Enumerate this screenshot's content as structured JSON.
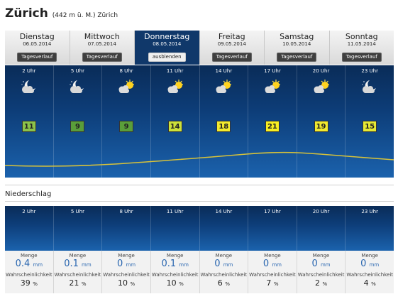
{
  "location": {
    "name": "Zürich",
    "detail": "(442 m ü. M.) Zürich"
  },
  "days": [
    {
      "name": "Dienstag",
      "date": "06.05.2014",
      "button": "Tagesverlauf",
      "active": false
    },
    {
      "name": "Mittwoch",
      "date": "07.05.2014",
      "button": "Tagesverlauf",
      "active": false
    },
    {
      "name": "Donnerstag",
      "date": "08.05.2014",
      "button": "ausblenden",
      "active": true
    },
    {
      "name": "Freitag",
      "date": "09.05.2014",
      "button": "Tagesverlauf",
      "active": false
    },
    {
      "name": "Samstag",
      "date": "10.05.2014",
      "button": "Tagesverlauf",
      "active": false
    },
    {
      "name": "Sonntag",
      "date": "11.05.2014",
      "button": "Tagesverlauf",
      "active": false
    }
  ],
  "hours": [
    {
      "time": "2 Uhr",
      "icon": "moon-cloud-icon",
      "temp": "11",
      "temp_color": "#8bc34a"
    },
    {
      "time": "5 Uhr",
      "icon": "moon-cloud-icon",
      "temp": "9",
      "temp_color": "#5a9e3a"
    },
    {
      "time": "8 Uhr",
      "icon": "sun-cloud-icon",
      "temp": "9",
      "temp_color": "#5a9e3a"
    },
    {
      "time": "11 Uhr",
      "icon": "sun-cloud-icon",
      "temp": "14",
      "temp_color": "#cde23a"
    },
    {
      "time": "14 Uhr",
      "icon": "sun-cloud-icon",
      "temp": "18",
      "temp_color": "#f2ea2e"
    },
    {
      "time": "17 Uhr",
      "icon": "sun-cloud-icon",
      "temp": "21",
      "temp_color": "#f7ee22"
    },
    {
      "time": "20 Uhr",
      "icon": "sun-cloud-icon",
      "temp": "19",
      "temp_color": "#f2ea2e"
    },
    {
      "time": "23 Uhr",
      "icon": "moon-cloud-icon",
      "temp": "15",
      "temp_color": "#e6ea34"
    }
  ],
  "precipitation": {
    "heading": "Niederschlag",
    "amount_label": "Menge",
    "probability_label": "Wahrscheinlichkeit",
    "amount_unit": "mm",
    "probability_unit": "%",
    "items": [
      {
        "time": "2 Uhr",
        "amount": "0.4",
        "probability": "39"
      },
      {
        "time": "5 Uhr",
        "amount": "0.1",
        "probability": "21"
      },
      {
        "time": "8 Uhr",
        "amount": "0",
        "probability": "10"
      },
      {
        "time": "11 Uhr",
        "amount": "0.1",
        "probability": "10"
      },
      {
        "time": "14 Uhr",
        "amount": "0",
        "probability": "6"
      },
      {
        "time": "17 Uhr",
        "amount": "0",
        "probability": "7"
      },
      {
        "time": "20 Uhr",
        "amount": "0",
        "probability": "2"
      },
      {
        "time": "23 Uhr",
        "amount": "0",
        "probability": "4"
      }
    ]
  }
}
